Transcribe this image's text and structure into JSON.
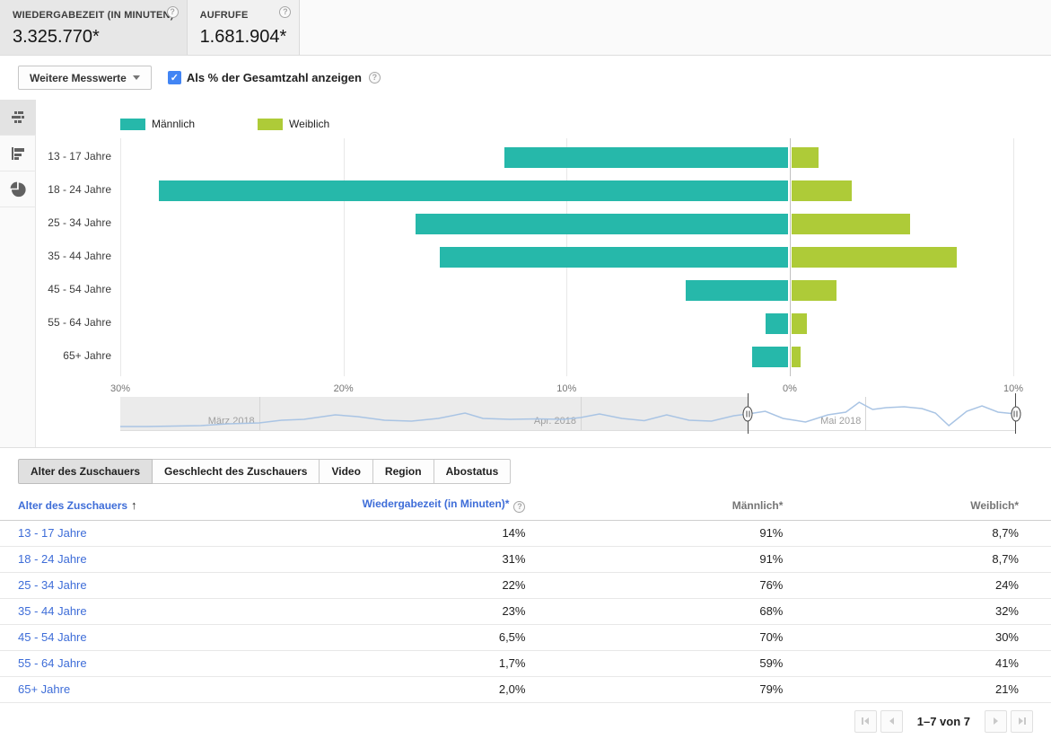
{
  "metrics": {
    "cards": [
      {
        "label": "WIEDERGABEZEIT (IN MINUTEN)",
        "value": "3.325.770*",
        "selected": true
      },
      {
        "label": "AUFRUFE",
        "value": "1.681.904*",
        "selected": false
      }
    ]
  },
  "controls": {
    "more_metrics_label": "Weitere Messwerte",
    "percent_checkbox_label": "Als % der Gesamtzahl anzeigen",
    "percent_checkbox_checked": true,
    "checkmark": "✓"
  },
  "sidebar": {
    "items": [
      "grouped-bar-chart",
      "bar-chart",
      "pie-chart"
    ],
    "selected_index": 0
  },
  "chart_data": {
    "type": "bar",
    "orientation": "horizontal-diverging",
    "categories": [
      "13 - 17 Jahre",
      "18 - 24 Jahre",
      "25 - 34 Jahre",
      "35 - 44 Jahre",
      "45 - 54 Jahre",
      "55 - 64 Jahre",
      "65+ Jahre"
    ],
    "series": [
      {
        "name": "Männlich",
        "color": "#26b8aa",
        "direction": "left",
        "values": [
          12.7,
          28.2,
          16.7,
          15.6,
          4.6,
          1.0,
          1.6
        ]
      },
      {
        "name": "Weiblich",
        "color": "#aecb38",
        "direction": "right",
        "values": [
          1.2,
          2.7,
          5.3,
          7.4,
          2.0,
          0.7,
          0.4
        ]
      }
    ],
    "x_ticks": [
      "30%",
      "20%",
      "10%",
      "0%",
      "10%"
    ],
    "xlim_left_pct": 30,
    "xlim_right_pct": 10,
    "unit": "% der Gesamt-Wiedergabezeit",
    "legend_position": "top",
    "grid": true,
    "timeline": {
      "months": [
        {
          "label": "März 2018",
          "pos": 0.155
        },
        {
          "label": "Apr. 2018",
          "pos": 0.514
        },
        {
          "label": "Mai 2018",
          "pos": 0.832
        }
      ],
      "selection": {
        "start": 0.701,
        "end": 1.0
      },
      "sparkline": [
        [
          0,
          33
        ],
        [
          0.03,
          33
        ],
        [
          0.06,
          32.5
        ],
        [
          0.09,
          32
        ],
        [
          0.12,
          30
        ],
        [
          0.155,
          29
        ],
        [
          0.18,
          26
        ],
        [
          0.205,
          25
        ],
        [
          0.24,
          20
        ],
        [
          0.265,
          22
        ],
        [
          0.295,
          26
        ],
        [
          0.325,
          27
        ],
        [
          0.355,
          24
        ],
        [
          0.385,
          18
        ],
        [
          0.405,
          24
        ],
        [
          0.435,
          25
        ],
        [
          0.465,
          24.5
        ],
        [
          0.495,
          25
        ],
        [
          0.514,
          23
        ],
        [
          0.535,
          19
        ],
        [
          0.56,
          24
        ],
        [
          0.585,
          26.5
        ],
        [
          0.61,
          20
        ],
        [
          0.635,
          26
        ],
        [
          0.66,
          27
        ],
        [
          0.685,
          21
        ],
        [
          0.701,
          19
        ],
        [
          0.72,
          16
        ],
        [
          0.74,
          24
        ],
        [
          0.765,
          28
        ],
        [
          0.79,
          20
        ],
        [
          0.81,
          17
        ],
        [
          0.825,
          6
        ],
        [
          0.84,
          14
        ],
        [
          0.855,
          12
        ],
        [
          0.875,
          11
        ],
        [
          0.895,
          13
        ],
        [
          0.91,
          18
        ],
        [
          0.925,
          32
        ],
        [
          0.945,
          16
        ],
        [
          0.962,
          10
        ],
        [
          0.98,
          17
        ],
        [
          1,
          19
        ]
      ]
    }
  },
  "tabs": [
    {
      "label": "Alter des Zuschauers",
      "active": true
    },
    {
      "label": "Geschlecht des Zuschauers",
      "active": false
    },
    {
      "label": "Video",
      "active": false
    },
    {
      "label": "Region",
      "active": false
    },
    {
      "label": "Abostatus",
      "active": false
    }
  ],
  "table": {
    "columns": [
      {
        "label": "Alter des Zuschauers",
        "sorted": "asc"
      },
      {
        "label": "Wiedergabezeit (in Minuten)*",
        "help": true
      },
      {
        "label": "Männlich*"
      },
      {
        "label": "Weiblich*"
      }
    ],
    "sort_arrow": "↑",
    "rows": [
      [
        "13 - 17 Jahre",
        "14%",
        "91%",
        "8,7%"
      ],
      [
        "18 - 24 Jahre",
        "31%",
        "91%",
        "8,7%"
      ],
      [
        "25 - 34 Jahre",
        "22%",
        "76%",
        "24%"
      ],
      [
        "35 - 44 Jahre",
        "23%",
        "68%",
        "32%"
      ],
      [
        "45 - 54 Jahre",
        "6,5%",
        "70%",
        "30%"
      ],
      [
        "55 - 64 Jahre",
        "1,7%",
        "59%",
        "41%"
      ],
      [
        "65+ Jahre",
        "2,0%",
        "79%",
        "21%"
      ]
    ]
  },
  "pagination": {
    "label": "1–7 von 7"
  },
  "help_glyph": "?"
}
